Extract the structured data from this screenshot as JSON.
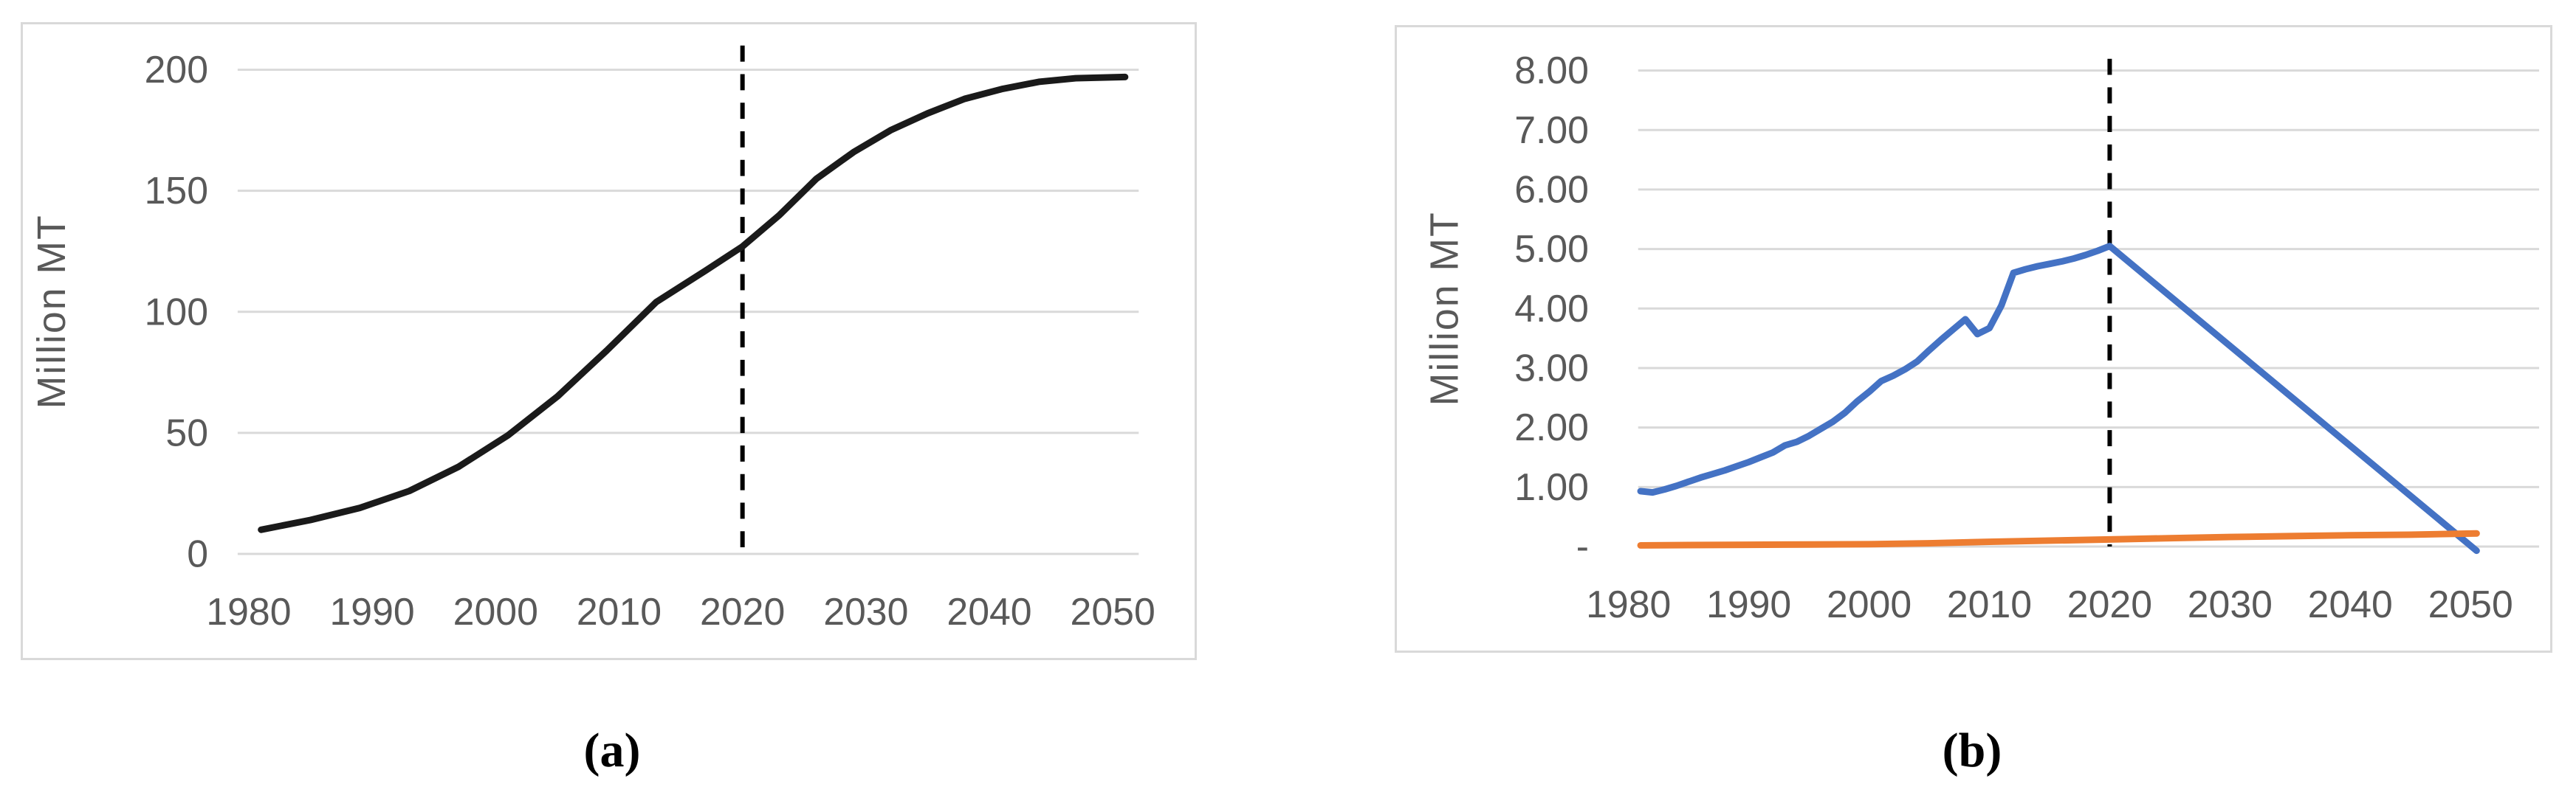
{
  "figure": {
    "captions": {
      "a": "(a)",
      "b": "(b)"
    }
  },
  "colors": {
    "panel_border": "#d9d9d9",
    "grid": "#d9d9d9",
    "tick_text": "#595959",
    "axis_title_text": "#595959",
    "divider_line": "#000000",
    "series_black": "#1a1a1a",
    "series_blue": "#4472c4",
    "series_orange": "#ed7d31"
  },
  "chart_data": [
    {
      "panel": "a",
      "type": "line",
      "title": "",
      "xlabel": "",
      "ylabel": "Million MT",
      "xlim": [
        1979.1,
        2052.1
      ],
      "ylim": [
        0,
        200
      ],
      "grid": true,
      "legend": "none",
      "xtick_values": [
        1980,
        1990,
        2000,
        2010,
        2020,
        2030,
        2040,
        2050
      ],
      "xtick_labels": [
        "1980",
        "1990",
        "2000",
        "2010",
        "2020",
        "2030",
        "2040",
        "2050"
      ],
      "ytick_values": [
        0,
        50,
        100,
        150,
        200
      ],
      "ytick_labels": [
        "0",
        "50",
        "100",
        "150",
        "200"
      ],
      "vline": {
        "x": 2020,
        "style": "dashed",
        "color": "#000000"
      },
      "series": [
        {
          "name": "historic-and-projected-total",
          "color": "#1a1a1a",
          "stroke_width": 9,
          "points": [
            [
              1981,
              10
            ],
            [
              1985,
              14
            ],
            [
              1989,
              19
            ],
            [
              1993,
              26
            ],
            [
              1997,
              36
            ],
            [
              2001,
              49
            ],
            [
              2005,
              65
            ],
            [
              2009,
              84
            ],
            [
              2013,
              104
            ],
            [
              2017,
              117
            ],
            [
              2020,
              127
            ],
            [
              2023,
              140
            ],
            [
              2026,
              155
            ],
            [
              2029,
              166
            ],
            [
              2032,
              175
            ],
            [
              2035,
              182
            ],
            [
              2038,
              188
            ],
            [
              2041,
              192
            ],
            [
              2044,
              195
            ],
            [
              2047,
              196.5
            ],
            [
              2051,
              197
            ]
          ]
        }
      ]
    },
    {
      "panel": "b",
      "type": "line",
      "title": "",
      "xlabel": "",
      "ylabel": "Million MT",
      "xlim": [
        1980.8,
        2055.7
      ],
      "ylim": [
        0,
        8
      ],
      "grid": true,
      "legend": "none",
      "xtick_values": [
        1980,
        1990,
        2000,
        2010,
        2020,
        2030,
        2040,
        2050
      ],
      "xtick_labels": [
        "1980",
        "1990",
        "2000",
        "2010",
        "2020",
        "2030",
        "2040",
        "2050"
      ],
      "ytick_values": [
        0,
        1,
        2,
        3,
        4,
        5,
        6,
        7,
        8
      ],
      "ytick_labels": [
        "-",
        "1.00",
        "2.00",
        "3.00",
        "4.00",
        "5.00",
        "6.00",
        "7.00",
        "8.00"
      ],
      "vline": {
        "x": 2020,
        "style": "dashed",
        "color": "#000000"
      },
      "series": [
        {
          "name": "blue-series-rise-and-decline",
          "color": "#4472c4",
          "stroke_width": 9,
          "points": [
            [
              1981,
              0.93
            ],
            [
              1982,
              0.91
            ],
            [
              1983,
              0.96
            ],
            [
              1984,
              1.02
            ],
            [
              1985,
              1.09
            ],
            [
              1986,
              1.16
            ],
            [
              1987,
              1.22
            ],
            [
              1988,
              1.28
            ],
            [
              1989,
              1.35
            ],
            [
              1990,
              1.42
            ],
            [
              1991,
              1.5
            ],
            [
              1992,
              1.58
            ],
            [
              1993,
              1.7
            ],
            [
              1994,
              1.76
            ],
            [
              1995,
              1.86
            ],
            [
              1996,
              1.98
            ],
            [
              1997,
              2.1
            ],
            [
              1998,
              2.25
            ],
            [
              1999,
              2.44
            ],
            [
              2000,
              2.6
            ],
            [
              2001,
              2.78
            ],
            [
              2002,
              2.87
            ],
            [
              2003,
              2.98
            ],
            [
              2004,
              3.11
            ],
            [
              2005,
              3.3
            ],
            [
              2006,
              3.48
            ],
            [
              2007,
              3.65
            ],
            [
              2008,
              3.82
            ],
            [
              2009,
              3.57
            ],
            [
              2010,
              3.67
            ],
            [
              2011,
              4.05
            ],
            [
              2012,
              4.6
            ],
            [
              2013,
              4.66
            ],
            [
              2014,
              4.71
            ],
            [
              2015,
              4.75
            ],
            [
              2016,
              4.79
            ],
            [
              2017,
              4.84
            ],
            [
              2018,
              4.9
            ],
            [
              2019,
              4.97
            ],
            [
              2020,
              5.05
            ],
            [
              2050.5,
              -0.07
            ]
          ]
        },
        {
          "name": "orange-series-slow-growth",
          "color": "#ed7d31",
          "stroke_width": 9,
          "points": [
            [
              1981,
              0.02
            ],
            [
              1985,
              0.025
            ],
            [
              1990,
              0.03
            ],
            [
              1995,
              0.035
            ],
            [
              2000,
              0.04
            ],
            [
              2005,
              0.055
            ],
            [
              2010,
              0.08
            ],
            [
              2015,
              0.1
            ],
            [
              2020,
              0.12
            ],
            [
              2025,
              0.14
            ],
            [
              2030,
              0.16
            ],
            [
              2035,
              0.175
            ],
            [
              2040,
              0.19
            ],
            [
              2045,
              0.2
            ],
            [
              2050.5,
              0.22
            ]
          ]
        }
      ]
    }
  ]
}
